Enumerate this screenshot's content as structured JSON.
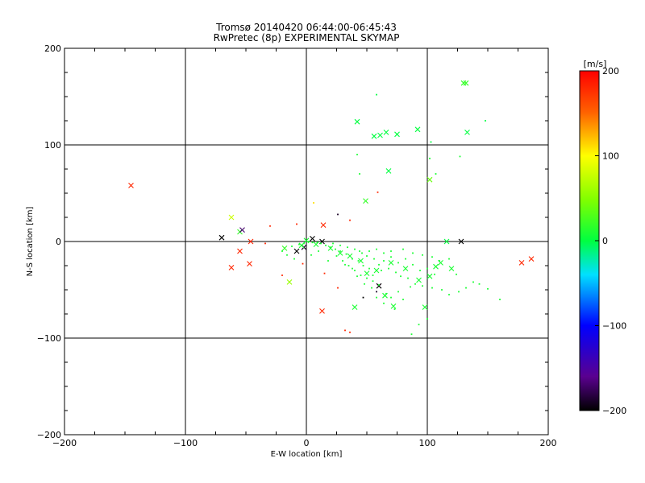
{
  "chart_data": {
    "type": "scatter",
    "title": "Tromsø 20140420 06:44:00-06:45:43",
    "subtitle": "RwPretec (8p) EXPERIMENTAL SKYMAP",
    "xlabel": "E-W location [km]",
    "ylabel": "N-S location [km]",
    "xlim": [
      -200,
      200
    ],
    "ylim": [
      -200,
      200
    ],
    "xticks": [
      "-200",
      "-100",
      "0",
      "100",
      "200"
    ],
    "yticks": [
      "-200",
      "-100",
      "0",
      "100",
      "200"
    ],
    "grid": true,
    "colorbar": {
      "unit": "[m/s]",
      "range": [
        -200,
        200
      ],
      "ticks": [
        "-200",
        "-100",
        "0",
        "100",
        "200"
      ]
    },
    "series": [
      {
        "marker": "x",
        "points": [
          [
            -145,
            58,
            180
          ],
          [
            -62,
            25,
            80
          ],
          [
            -55,
            10,
            20
          ],
          [
            -70,
            4,
            -200
          ],
          [
            -53,
            12,
            -170
          ],
          [
            -46,
            0,
            180
          ],
          [
            -55,
            -10,
            180
          ],
          [
            -62,
            -27,
            180
          ],
          [
            -47,
            -23,
            180
          ],
          [
            -14,
            -42,
            60
          ],
          [
            -8,
            -10,
            -200
          ],
          [
            -2,
            -6,
            -190
          ],
          [
            5,
            3,
            -200
          ],
          [
            13,
            0,
            -200
          ],
          [
            14,
            17,
            180
          ],
          [
            13,
            -72,
            180
          ],
          [
            -18,
            -7,
            20
          ],
          [
            60,
            -46,
            -200
          ],
          [
            128,
            0,
            -200
          ],
          [
            178,
            -22,
            180
          ],
          [
            186,
            -18,
            180
          ],
          [
            42,
            124,
            0
          ],
          [
            56,
            109,
            0
          ],
          [
            61,
            110,
            0
          ],
          [
            66,
            113,
            0
          ],
          [
            75,
            111,
            0
          ],
          [
            68,
            73,
            0
          ],
          [
            92,
            116,
            0
          ],
          [
            130,
            164,
            20
          ],
          [
            132,
            164,
            20
          ],
          [
            133,
            113,
            0
          ],
          [
            102,
            64,
            40
          ],
          [
            49,
            42,
            20
          ],
          [
            116,
            0,
            0
          ],
          [
            111,
            -22,
            10
          ],
          [
            98,
            -68,
            10
          ],
          [
            40,
            -68,
            10
          ],
          [
            72,
            -67,
            10
          ],
          [
            65,
            -56,
            10
          ],
          [
            102,
            -36,
            10
          ],
          [
            93,
            -40,
            10
          ],
          [
            82,
            -28,
            10
          ],
          [
            70,
            -22,
            10
          ],
          [
            58,
            -30,
            10
          ],
          [
            50,
            -33,
            10
          ],
          [
            45,
            -20,
            10
          ],
          [
            36,
            -15,
            10
          ],
          [
            28,
            -12,
            10
          ],
          [
            20,
            -7,
            10
          ],
          [
            8,
            -3,
            10
          ],
          [
            0,
            1,
            10
          ],
          [
            -4,
            -4,
            10
          ],
          [
            107,
            -26,
            10
          ],
          [
            120,
            -28,
            10
          ]
        ]
      },
      {
        "marker": "dot",
        "points": [
          [
            -145,
            58,
            180
          ],
          [
            -30,
            16,
            180
          ],
          [
            -8,
            18,
            180
          ],
          [
            6,
            40,
            110
          ],
          [
            26,
            28,
            -190
          ],
          [
            36,
            22,
            180
          ],
          [
            42,
            90,
            10
          ],
          [
            59,
            51,
            180
          ],
          [
            102,
            86,
            10
          ],
          [
            58,
            152,
            0
          ],
          [
            103,
            103,
            0
          ],
          [
            148,
            125,
            0
          ],
          [
            127,
            88,
            10
          ],
          [
            107,
            70,
            10
          ],
          [
            44,
            70,
            10
          ],
          [
            -34,
            -2,
            180
          ],
          [
            -20,
            -35,
            180
          ],
          [
            -3,
            -23,
            180
          ],
          [
            15,
            -33,
            180
          ],
          [
            26,
            -48,
            180
          ],
          [
            32,
            -92,
            180
          ],
          [
            36,
            -94,
            180
          ],
          [
            47,
            -58,
            -200
          ],
          [
            58,
            -52,
            -190
          ],
          [
            87,
            -96,
            10
          ],
          [
            93,
            -86,
            10
          ],
          [
            100,
            -80,
            10
          ],
          [
            124,
            -34,
            10
          ],
          [
            138,
            -42,
            10
          ],
          [
            143,
            -44,
            10
          ],
          [
            150,
            -49,
            10
          ],
          [
            160,
            -60,
            10
          ],
          [
            86,
            -47,
            10
          ],
          [
            80,
            -60,
            10
          ],
          [
            73,
            -70,
            10
          ],
          [
            66,
            -54,
            10
          ],
          [
            60,
            -45,
            10
          ],
          [
            55,
            -41,
            10
          ],
          [
            52,
            -28,
            10
          ],
          [
            47,
            -25,
            10
          ],
          [
            43,
            -20,
            10
          ],
          [
            38,
            -18,
            10
          ],
          [
            33,
            -13,
            10
          ],
          [
            28,
            -10,
            10
          ],
          [
            24,
            -8,
            10
          ],
          [
            20,
            -6,
            10
          ],
          [
            16,
            -4,
            10
          ],
          [
            12,
            -2,
            10
          ],
          [
            9,
            -1,
            10
          ],
          [
            5,
            -1,
            10
          ],
          [
            2,
            0,
            10
          ],
          [
            -2,
            -2,
            10
          ],
          [
            -6,
            -3,
            10
          ],
          [
            -12,
            -5,
            10
          ],
          [
            -20,
            -10,
            10
          ],
          [
            30,
            -20,
            10
          ],
          [
            35,
            -25,
            10
          ],
          [
            40,
            -30,
            10
          ],
          [
            45,
            -35,
            10
          ],
          [
            50,
            -38,
            10
          ],
          [
            55,
            -35,
            10
          ],
          [
            62,
            -30,
            10
          ],
          [
            68,
            -28,
            10
          ],
          [
            74,
            -32,
            10
          ],
          [
            78,
            -36,
            10
          ],
          [
            84,
            -38,
            10
          ],
          [
            90,
            -44,
            10
          ],
          [
            96,
            -46,
            10
          ],
          [
            104,
            -48,
            10
          ],
          [
            112,
            -50,
            10
          ],
          [
            118,
            -55,
            10
          ],
          [
            126,
            -52,
            10
          ],
          [
            132,
            -48,
            10
          ],
          [
            44,
            -10,
            10
          ],
          [
            50,
            -15,
            10
          ],
          [
            56,
            -18,
            10
          ],
          [
            60,
            -24,
            10
          ],
          [
            64,
            -20,
            10
          ],
          [
            70,
            -16,
            10
          ],
          [
            76,
            -22,
            10
          ],
          [
            82,
            -18,
            10
          ],
          [
            88,
            -24,
            10
          ],
          [
            94,
            -30,
            10
          ],
          [
            100,
            -28,
            10
          ],
          [
            106,
            -34,
            10
          ],
          [
            25,
            -15,
            10
          ],
          [
            32,
            -24,
            10
          ],
          [
            38,
            -28,
            10
          ],
          [
            42,
            -36,
            10
          ],
          [
            48,
            -44,
            10
          ],
          [
            54,
            -48,
            10
          ],
          [
            58,
            -58,
            10
          ],
          [
            64,
            -64,
            10
          ],
          [
            70,
            -58,
            10
          ],
          [
            76,
            -52,
            10
          ],
          [
            22,
            -2,
            10
          ],
          [
            28,
            -4,
            10
          ],
          [
            34,
            -6,
            10
          ],
          [
            40,
            -8,
            10
          ],
          [
            46,
            -12,
            10
          ],
          [
            52,
            -10,
            10
          ],
          [
            58,
            -8,
            10
          ],
          [
            64,
            -12,
            10
          ],
          [
            70,
            -10,
            10
          ],
          [
            80,
            -8,
            10
          ],
          [
            88,
            -12,
            10
          ],
          [
            96,
            -14,
            10
          ],
          [
            104,
            -16,
            10
          ],
          [
            110,
            -20,
            10
          ],
          [
            118,
            -18,
            10
          ],
          [
            -16,
            -14,
            10
          ],
          [
            -10,
            -18,
            10
          ],
          [
            4,
            -14,
            10
          ],
          [
            10,
            -10,
            10
          ],
          [
            18,
            -20,
            10
          ]
        ]
      }
    ]
  }
}
